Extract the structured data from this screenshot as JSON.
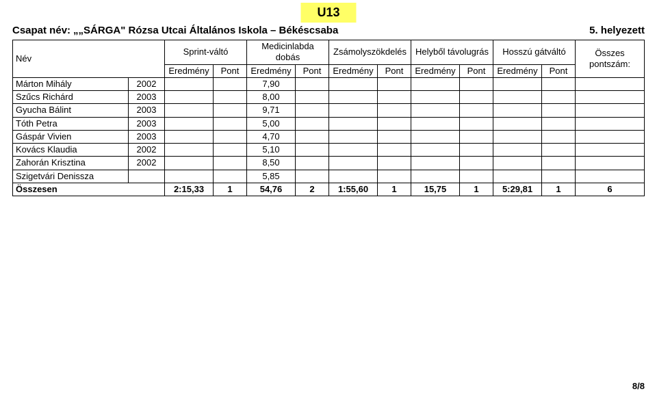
{
  "colors": {
    "title_bg": "#ffff66",
    "page_bg": "#ffffff",
    "border": "#000000",
    "text": "#000000"
  },
  "title": "U13",
  "team_label": "Csapat név:",
  "team_name": "„SÁRGA\" Rózsa Utcai Általános Iskola – Békéscsaba",
  "placement": "5. helyezett",
  "header": {
    "name": "Név",
    "groups": [
      "Sprint-váltó",
      "Medicinlabda dobás",
      "Zsámolyszökdelés",
      "Helyből távolugrás",
      "Hosszú gátváltó"
    ],
    "sub_result": "Eredmény",
    "sub_point": "Pont",
    "total_label": "Összes pontszám:"
  },
  "rows": [
    {
      "name": "Márton Mihály",
      "year": "2002",
      "med": "7,90"
    },
    {
      "name": "Szűcs Richárd",
      "year": "2003",
      "med": "8,00"
    },
    {
      "name": "Gyucha Bálint",
      "year": "2003",
      "med": "9,71"
    },
    {
      "name": "Tóth Petra",
      "year": "2003",
      "med": "5,00"
    },
    {
      "name": "Gáspár Vivien",
      "year": "2003",
      "med": "4,70"
    },
    {
      "name": "Kovács Klaudia",
      "year": "2002",
      "med": "5,10"
    },
    {
      "name": "Zahorán Krisztina",
      "year": "2002",
      "med": "8,50"
    },
    {
      "name": "Szigetvári Denissza",
      "year": "",
      "med": "5,85"
    }
  ],
  "totals": {
    "label": "Összesen",
    "sprint_res": "2:15,33",
    "sprint_pt": "1",
    "med_res": "54,76",
    "med_pt": "2",
    "zsa_res": "1:55,60",
    "zsa_pt": "1",
    "tav_res": "15,75",
    "tav_pt": "1",
    "gat_res": "5:29,81",
    "gat_pt": "1",
    "total": "6"
  },
  "footer": "8/8"
}
